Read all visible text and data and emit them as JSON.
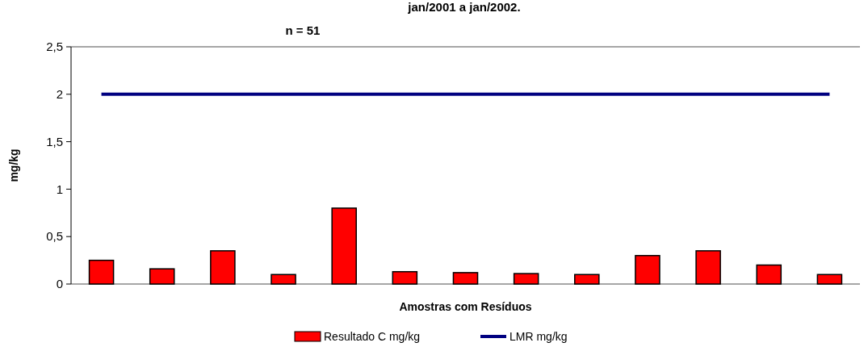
{
  "chart_data": {
    "type": "bar",
    "title": "jan/2001 a jan/2002.",
    "subtitle": "n = 51",
    "xlabel": "Amostras com Resíduos",
    "ylabel": "mg/kg",
    "categories": [
      null,
      null,
      null,
      null,
      null,
      null,
      null,
      null,
      null,
      null,
      null,
      null,
      null
    ],
    "series": [
      {
        "name": "Resultado C mg/kg",
        "color": "#ff0000",
        "values": [
          0.25,
          0.16,
          0.35,
          0.1,
          0.8,
          0.13,
          0.12,
          0.11,
          0.1,
          0.3,
          0.35,
          0.2,
          0.1
        ]
      },
      {
        "name": "LMR mg/kg",
        "type": "line",
        "color": "#000080",
        "values": [
          2,
          2,
          2,
          2,
          2,
          2,
          2,
          2,
          2,
          2,
          2,
          2,
          2
        ]
      }
    ],
    "ylim": [
      0,
      2.5
    ],
    "yticks": [
      {
        "value": 0,
        "label": "0"
      },
      {
        "value": 0.5,
        "label": "0,5"
      },
      {
        "value": 1,
        "label": "1"
      },
      {
        "value": 1.5,
        "label": "1,5"
      },
      {
        "value": 2,
        "label": "2"
      },
      {
        "value": 2.5,
        "label": "2,5"
      }
    ],
    "grid": false,
    "legend": "bottom"
  }
}
